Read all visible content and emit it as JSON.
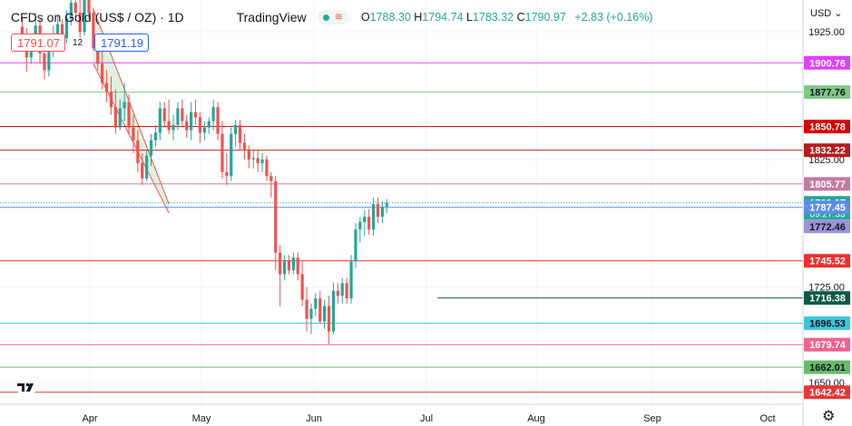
{
  "header": {
    "symbol": "CFDs on Gold (US$ / OZ) · 1D",
    "brand": "TradingView",
    "open_label": "O",
    "open": "1788.30",
    "high_label": "H",
    "high": "1794.74",
    "low_label": "L",
    "low": "1783.32",
    "close_label": "C",
    "close": "1790.97",
    "change": "+2.83 (+0.16%)"
  },
  "trade": {
    "sell": "1791.07",
    "spread": "12",
    "buy": "1791.19"
  },
  "axis": {
    "currency": "USD"
  },
  "colors": {
    "up": "#26a69a",
    "down": "#ef5350",
    "grid": "#f0f3fa",
    "channel_fill": "rgba(76,175,80,0.18)",
    "channel_edge": "#ef5350"
  },
  "icons": [
    "tradingview-logo-icon",
    "gear-icon",
    "usd-dropdown-icon"
  ],
  "chart_data": {
    "type": "candlestick",
    "ylim": [
      1633,
      1950
    ],
    "y_ticks": [
      1925,
      1825,
      1725,
      1650
    ],
    "x_tick_labels": [
      "Apr",
      "May",
      "Jun",
      "Jul",
      "Aug",
      "Sep",
      "Oct"
    ],
    "levels": [
      {
        "label": "1900.76",
        "value": 1900.76,
        "color": "#e040fb",
        "text_color": "#ffffff"
      },
      {
        "label": "1877.76",
        "value": 1877.76,
        "color": "#81c784",
        "text_color": "#131722"
      },
      {
        "label": "1850.78",
        "value": 1850.78,
        "color": "#d50000",
        "text_color": "#ffffff"
      },
      {
        "label": "1832.22",
        "value": 1832.22,
        "color": "#b71c1c",
        "text_color": "#ffffff"
      },
      {
        "label": "1805.77",
        "value": 1805.77,
        "color": "#c27ba0",
        "text_color": "#ffffff"
      },
      {
        "label": "1790.97",
        "value": 1790.97,
        "color": "#26a69a",
        "text_color": "#ffffff",
        "sub": "09:27:33",
        "dotted": true
      },
      {
        "label": "1787.45",
        "value": 1787.45,
        "color": "#5c8de8",
        "text_color": "#ffffff"
      },
      {
        "label": "1772.46",
        "value": 1772.46,
        "color": "#9b93d6",
        "text_color": "#131722",
        "noline": true
      },
      {
        "label": "1745.52",
        "value": 1745.52,
        "color": "#ef2f2f",
        "text_color": "#ffffff"
      },
      {
        "label": "1716.38",
        "value": 1716.38,
        "color": "#0b5a44",
        "text_color": "#ffffff",
        "start": 0.545
      },
      {
        "label": "1696.53",
        "value": 1696.53,
        "color": "#3ec5d8",
        "text_color": "#131722"
      },
      {
        "label": "1679.74",
        "value": 1679.74,
        "color": "#f06292",
        "text_color": "#ffffff"
      },
      {
        "label": "1662.01",
        "value": 1662.01,
        "color": "#66bb6a",
        "text_color": "#131722"
      },
      {
        "label": "1642.42",
        "value": 1642.42,
        "color": "#e53935",
        "text_color": "#ffffff"
      }
    ],
    "channel": {
      "upper": [
        [
          16,
          1943
        ],
        [
          33,
          1790
        ]
      ],
      "lower": [
        [
          16,
          1900
        ],
        [
          33,
          1783
        ]
      ]
    },
    "candles": [
      [
        1929,
        1937,
        1913,
        1920
      ],
      [
        1920,
        1928,
        1894,
        1905
      ],
      [
        1905,
        1922,
        1900,
        1918
      ],
      [
        1918,
        1940,
        1912,
        1930
      ],
      [
        1930,
        1935,
        1900,
        1908
      ],
      [
        1908,
        1915,
        1888,
        1895
      ],
      [
        1895,
        1918,
        1890,
        1912
      ],
      [
        1912,
        1930,
        1905,
        1922
      ],
      [
        1922,
        1938,
        1915,
        1931
      ],
      [
        1931,
        1935,
        1915,
        1920
      ],
      [
        1920,
        1942,
        1916,
        1936
      ],
      [
        1936,
        1960,
        1930,
        1948
      ],
      [
        1948,
        1955,
        1935,
        1940
      ],
      [
        1940,
        1950,
        1920,
        1925
      ],
      [
        1925,
        1962,
        1922,
        1955
      ],
      [
        1955,
        1962,
        1935,
        1940
      ],
      [
        1940,
        1944,
        1910,
        1912
      ],
      [
        1912,
        1920,
        1895,
        1900
      ],
      [
        1900,
        1910,
        1880,
        1885
      ],
      [
        1885,
        1895,
        1870,
        1878
      ],
      [
        1878,
        1890,
        1860,
        1866
      ],
      [
        1866,
        1880,
        1845,
        1850
      ],
      [
        1850,
        1872,
        1848,
        1865
      ],
      [
        1865,
        1885,
        1855,
        1870
      ],
      [
        1870,
        1876,
        1845,
        1850
      ],
      [
        1850,
        1860,
        1830,
        1840
      ],
      [
        1840,
        1848,
        1815,
        1822
      ],
      [
        1822,
        1830,
        1805,
        1810
      ],
      [
        1810,
        1832,
        1808,
        1828
      ],
      [
        1828,
        1845,
        1820,
        1840
      ],
      [
        1840,
        1852,
        1835,
        1846
      ],
      [
        1846,
        1870,
        1840,
        1865
      ],
      [
        1865,
        1870,
        1850,
        1855
      ],
      [
        1855,
        1872,
        1845,
        1848
      ],
      [
        1848,
        1860,
        1840,
        1852
      ],
      [
        1852,
        1870,
        1848,
        1865
      ],
      [
        1865,
        1872,
        1850,
        1855
      ],
      [
        1855,
        1860,
        1842,
        1848
      ],
      [
        1848,
        1870,
        1840,
        1862
      ],
      [
        1862,
        1872,
        1852,
        1858
      ],
      [
        1858,
        1862,
        1838,
        1846
      ],
      [
        1846,
        1855,
        1840,
        1850
      ],
      [
        1850,
        1858,
        1845,
        1855
      ],
      [
        1855,
        1872,
        1848,
        1866
      ],
      [
        1866,
        1870,
        1840,
        1845
      ],
      [
        1845,
        1855,
        1810,
        1815
      ],
      [
        1815,
        1830,
        1805,
        1812
      ],
      [
        1812,
        1850,
        1808,
        1845
      ],
      [
        1845,
        1856,
        1835,
        1852
      ],
      [
        1852,
        1856,
        1832,
        1838
      ],
      [
        1838,
        1845,
        1825,
        1832
      ],
      [
        1832,
        1836,
        1818,
        1825
      ],
      [
        1825,
        1832,
        1818,
        1826
      ],
      [
        1826,
        1832,
        1815,
        1822
      ],
      [
        1822,
        1830,
        1815,
        1825
      ],
      [
        1825,
        1828,
        1808,
        1812
      ],
      [
        1812,
        1815,
        1795,
        1808
      ],
      [
        1808,
        1812,
        1738,
        1752
      ],
      [
        1752,
        1758,
        1710,
        1735
      ],
      [
        1735,
        1750,
        1730,
        1746
      ],
      [
        1746,
        1750,
        1735,
        1738
      ],
      [
        1738,
        1752,
        1735,
        1748
      ],
      [
        1748,
        1752,
        1730,
        1735
      ],
      [
        1735,
        1745,
        1710,
        1715
      ],
      [
        1715,
        1725,
        1690,
        1700
      ],
      [
        1700,
        1712,
        1688,
        1708
      ],
      [
        1708,
        1720,
        1702,
        1716
      ],
      [
        1716,
        1722,
        1696,
        1698
      ],
      [
        1698,
        1715,
        1692,
        1710
      ],
      [
        1710,
        1718,
        1680,
        1690
      ],
      [
        1690,
        1728,
        1688,
        1722
      ],
      [
        1722,
        1728,
        1712,
        1718
      ],
      [
        1718,
        1732,
        1712,
        1728
      ],
      [
        1728,
        1732,
        1712,
        1716
      ],
      [
        1716,
        1750,
        1712,
        1745
      ],
      [
        1745,
        1775,
        1740,
        1770
      ],
      [
        1770,
        1780,
        1760,
        1776
      ],
      [
        1776,
        1785,
        1765,
        1780
      ],
      [
        1780,
        1786,
        1766,
        1770
      ],
      [
        1770,
        1795,
        1765,
        1790
      ],
      [
        1790,
        1795,
        1775,
        1780
      ],
      [
        1780,
        1792,
        1775,
        1788
      ],
      [
        1788,
        1794,
        1783,
        1791
      ]
    ]
  }
}
